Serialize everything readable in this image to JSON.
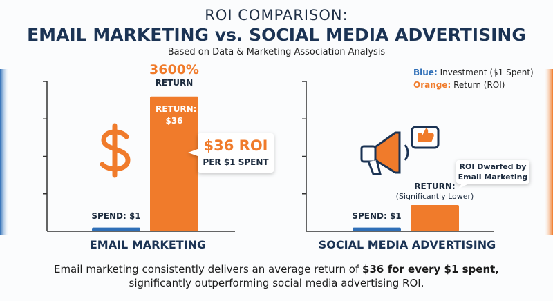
{
  "header": {
    "title_line1": "ROI COMPARISON:",
    "title_line2": "EMAIL MARKETING vs. SOCIAL MEDIA ADVERTISING",
    "subtitle": "Based on Data & Marketing Association Analysis"
  },
  "legend": [
    {
      "key": "Blue:",
      "text": "Investment ($1 Spent)"
    },
    {
      "key": "Orange:",
      "text": "Return (ROI)"
    }
  ],
  "chart_data": [
    {
      "type": "bar",
      "title": "EMAIL MARKETING",
      "values": [
        1,
        36
      ],
      "value_labels": [
        "SPEND: $1",
        "RETURN: $36"
      ],
      "colors": [
        "#2f6fb7",
        "#f07b2b"
      ],
      "ylim": [
        0,
        40
      ],
      "yticks": [
        10,
        20,
        30,
        40
      ],
      "annotations": {
        "percent": "3600%",
        "percent_caption": "RETURN",
        "callout_main": "$36 ROI",
        "callout_sub": "PER $1 SPENT"
      }
    },
    {
      "type": "bar",
      "title": "SOCIAL MEDIA ADVERTISING",
      "values": [
        1,
        7
      ],
      "value_labels": [
        "SPEND: $1",
        "RETURN:"
      ],
      "colors": [
        "#2f6fb7",
        "#f07b2b"
      ],
      "ylim": [
        0,
        40
      ],
      "yticks": [
        10,
        20,
        30,
        40
      ],
      "annotations": {
        "return_note": "(Significantly Lower)",
        "callout": "ROI Dwarfed by Email Marketing"
      }
    }
  ],
  "footer": [
    "Email marketing consistently delivers an average return of ",
    "$36 for every $1 spent,",
    "significantly outperforming social media advertising ROI."
  ]
}
